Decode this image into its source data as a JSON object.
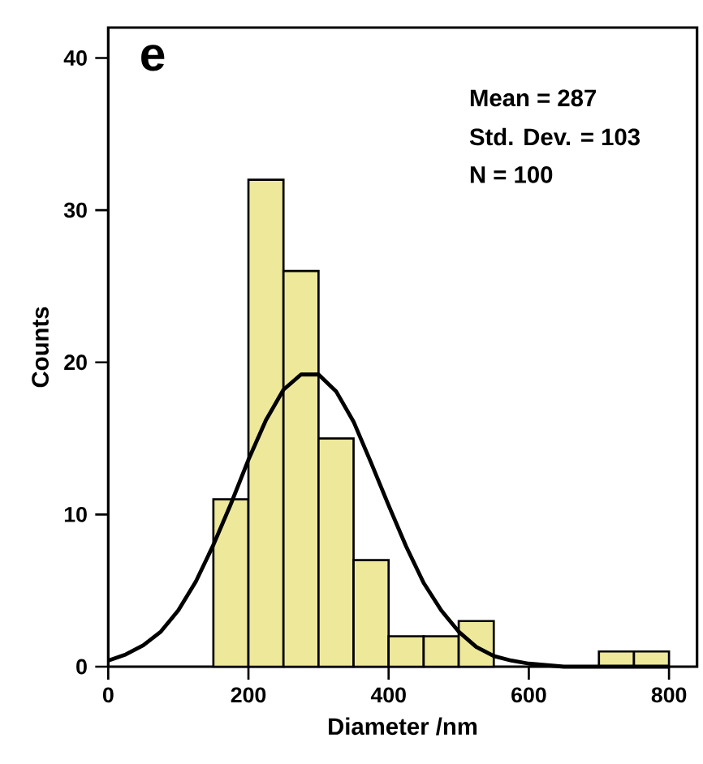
{
  "chart_data": {
    "type": "histogram",
    "xlabel": "Diameter /nm",
    "ylabel": "Counts",
    "annotations": [
      "e",
      "Mean = 287",
      "Std. Dev. = 103",
      "N = 100"
    ],
    "xlim": [
      0,
      840
    ],
    "ylim": [
      0,
      42
    ],
    "xticks": [
      0,
      200,
      400,
      600,
      800
    ],
    "yticks": [
      0,
      10,
      20,
      30,
      40
    ],
    "grid": false,
    "series": [
      {
        "color": "#eee89a",
        "bins": [
          150,
          200,
          250,
          300,
          350,
          400,
          450,
          500,
          550,
          600,
          650,
          700,
          750,
          800
        ],
        "values": [
          11,
          32,
          26,
          15,
          7,
          2,
          2,
          3,
          0,
          0,
          0,
          1,
          1
        ]
      },
      {
        "type": "line",
        "color": "#000000",
        "line_style": "solid",
        "marker": "none",
        "x": [
          0,
          25,
          50,
          75,
          100,
          125,
          150,
          175,
          200,
          225,
          250,
          275,
          300,
          325,
          350,
          375,
          400,
          425,
          450,
          475,
          500,
          525,
          550,
          575,
          600,
          650,
          700,
          800
        ],
        "values": [
          0.4,
          0.8,
          1.4,
          2.3,
          3.7,
          5.6,
          8.0,
          10.7,
          13.6,
          16.2,
          18.2,
          19.2,
          19.2,
          18.1,
          16.1,
          13.4,
          10.6,
          7.9,
          5.5,
          3.7,
          2.3,
          1.3,
          0.7,
          0.4,
          0.2,
          0,
          0,
          0
        ]
      }
    ]
  }
}
